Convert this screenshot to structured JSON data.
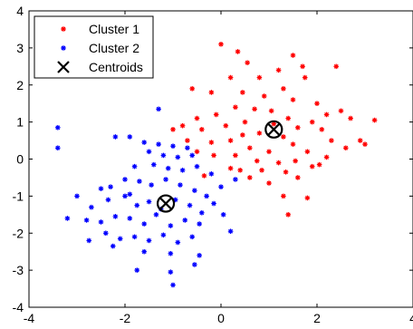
{
  "chart_data": {
    "type": "scatter",
    "title": "",
    "xlabel": "",
    "ylabel": "",
    "xlim": [
      -4,
      4
    ],
    "ylim": [
      -4,
      4
    ],
    "xticks": [
      -4,
      -2,
      0,
      2,
      4
    ],
    "yticks": [
      -4,
      -3,
      -2,
      -1,
      0,
      1,
      2,
      3,
      4
    ],
    "xtick_labels": [
      "-4",
      "-2",
      "0",
      "2",
      "4"
    ],
    "ytick_labels": [
      "-4",
      "-3",
      "-2",
      "-1",
      "0",
      "1",
      "2",
      "3",
      "4"
    ],
    "grid": false,
    "legend_position": "top-left",
    "series": [
      {
        "name": "Cluster 1",
        "color": "#ff0000",
        "marker": "star",
        "points": [
          [
            0.0,
            3.1
          ],
          [
            0.35,
            2.9
          ],
          [
            0.55,
            2.6
          ],
          [
            1.5,
            2.8
          ],
          [
            1.7,
            2.5
          ],
          [
            1.75,
            2.2
          ],
          [
            2.4,
            2.5
          ],
          [
            1.2,
            2.4
          ],
          [
            0.8,
            2.2
          ],
          [
            0.2,
            2.2
          ],
          [
            0.45,
            1.8
          ],
          [
            -0.6,
            1.9
          ],
          [
            -0.2,
            1.8
          ],
          [
            0.9,
            1.7
          ],
          [
            1.3,
            1.9
          ],
          [
            1.5,
            1.6
          ],
          [
            2.0,
            1.5
          ],
          [
            2.2,
            1.2
          ],
          [
            2.5,
            1.3
          ],
          [
            3.2,
            1.05
          ],
          [
            2.7,
            1.1
          ],
          [
            1.9,
            1.0
          ],
          [
            1.4,
            1.1
          ],
          [
            1.05,
            1.3
          ],
          [
            0.7,
            1.35
          ],
          [
            0.3,
            1.4
          ],
          [
            -0.1,
            1.2
          ],
          [
            -0.5,
            1.1
          ],
          [
            -0.8,
            0.9
          ],
          [
            -1.0,
            0.8
          ],
          [
            -0.4,
            0.8
          ],
          [
            0.1,
            0.9
          ],
          [
            0.5,
            1.0
          ],
          [
            0.8,
            0.7
          ],
          [
            1.3,
            0.6
          ],
          [
            1.6,
            0.85
          ],
          [
            2.1,
            0.8
          ],
          [
            2.3,
            0.5
          ],
          [
            2.6,
            0.3
          ],
          [
            2.9,
            0.5
          ],
          [
            3.0,
            0.4
          ],
          [
            -0.7,
            0.5
          ],
          [
            -0.2,
            0.45
          ],
          [
            0.2,
            0.5
          ],
          [
            0.6,
            0.3
          ],
          [
            1.0,
            0.2
          ],
          [
            1.5,
            0.4
          ],
          [
            1.8,
            0.2
          ],
          [
            2.2,
            0.05
          ],
          [
            2.05,
            -0.15
          ],
          [
            -0.5,
            0.2
          ],
          [
            -0.15,
            0.1
          ],
          [
            0.3,
            0.1
          ],
          [
            0.75,
            -0.05
          ],
          [
            1.2,
            -0.1
          ],
          [
            1.55,
            -0.05
          ],
          [
            1.9,
            -0.2
          ],
          [
            0.4,
            -0.3
          ],
          [
            0.85,
            -0.3
          ],
          [
            1.35,
            -0.35
          ],
          [
            0.6,
            -0.5
          ],
          [
            1.0,
            -0.65
          ],
          [
            1.6,
            -0.5
          ],
          [
            1.3,
            -1.0
          ],
          [
            1.8,
            -1.05
          ],
          [
            1.4,
            -1.5
          ],
          [
            -0.35,
            -0.45
          ],
          [
            0.2,
            -0.25
          ],
          [
            0.45,
            0.65
          ],
          [
            1.1,
            0.95
          ]
        ]
      },
      {
        "name": "Cluster 2",
        "color": "#0000ff",
        "marker": "star",
        "points": [
          [
            -3.4,
            0.85
          ],
          [
            -3.4,
            0.3
          ],
          [
            -1.3,
            1.35
          ],
          [
            -2.2,
            0.6
          ],
          [
            -1.9,
            0.6
          ],
          [
            -1.6,
            0.45
          ],
          [
            -1.3,
            0.4
          ],
          [
            -1.0,
            0.35
          ],
          [
            -0.7,
            0.3
          ],
          [
            -1.5,
            0.2
          ],
          [
            -1.2,
            0.1
          ],
          [
            -0.9,
            0.05
          ],
          [
            -0.6,
            0.1
          ],
          [
            -1.8,
            -0.2
          ],
          [
            -1.4,
            -0.15
          ],
          [
            -1.1,
            -0.25
          ],
          [
            -0.8,
            -0.3
          ],
          [
            -0.5,
            -0.2
          ],
          [
            -0.2,
            -0.4
          ],
          [
            -2.5,
            -0.8
          ],
          [
            -2.3,
            -0.75
          ],
          [
            -2.0,
            -0.55
          ],
          [
            -1.7,
            -0.6
          ],
          [
            -1.45,
            -0.7
          ],
          [
            -1.15,
            -0.55
          ],
          [
            -0.85,
            -0.7
          ],
          [
            -0.55,
            -0.85
          ],
          [
            -0.3,
            -1.0
          ],
          [
            -3.0,
            -1.0
          ],
          [
            -2.7,
            -1.3
          ],
          [
            -2.35,
            -1.1
          ],
          [
            -2.0,
            -1.0
          ],
          [
            -1.75,
            -1.25
          ],
          [
            -1.5,
            -1.15
          ],
          [
            -1.25,
            -1.35
          ],
          [
            -0.95,
            -1.1
          ],
          [
            -0.65,
            -1.25
          ],
          [
            -0.4,
            -1.45
          ],
          [
            -3.2,
            -1.6
          ],
          [
            -2.8,
            -1.65
          ],
          [
            -2.5,
            -1.7
          ],
          [
            -2.2,
            -1.55
          ],
          [
            -1.9,
            -1.6
          ],
          [
            -1.6,
            -1.75
          ],
          [
            -1.35,
            -1.5
          ],
          [
            -1.05,
            -1.8
          ],
          [
            -0.75,
            -1.65
          ],
          [
            -0.45,
            -1.75
          ],
          [
            -2.4,
            -2.0
          ],
          [
            -2.1,
            -2.15
          ],
          [
            -1.8,
            -2.1
          ],
          [
            -1.5,
            -2.2
          ],
          [
            -1.2,
            -2.05
          ],
          [
            -0.9,
            -2.25
          ],
          [
            -0.6,
            -2.1
          ],
          [
            -2.75,
            -2.2
          ],
          [
            -2.25,
            -2.35
          ],
          [
            -1.6,
            -2.5
          ],
          [
            -1.05,
            -2.55
          ],
          [
            -0.45,
            -2.6
          ],
          [
            -1.75,
            -3.0
          ],
          [
            -1.05,
            -3.05
          ],
          [
            -0.55,
            -2.85
          ],
          [
            -1.0,
            -3.4
          ],
          [
            0.05,
            -1.5
          ],
          [
            0.2,
            -1.95
          ],
          [
            0.0,
            -0.75
          ],
          [
            0.3,
            -0.55
          ],
          [
            -0.15,
            -1.2
          ],
          [
            -1.9,
            -0.95
          ]
        ]
      }
    ],
    "centroids": {
      "name": "Centroids",
      "color": "#000000",
      "marker": "x-circle",
      "points": [
        [
          1.1,
          0.8
        ],
        [
          -1.15,
          -1.2
        ]
      ]
    }
  }
}
